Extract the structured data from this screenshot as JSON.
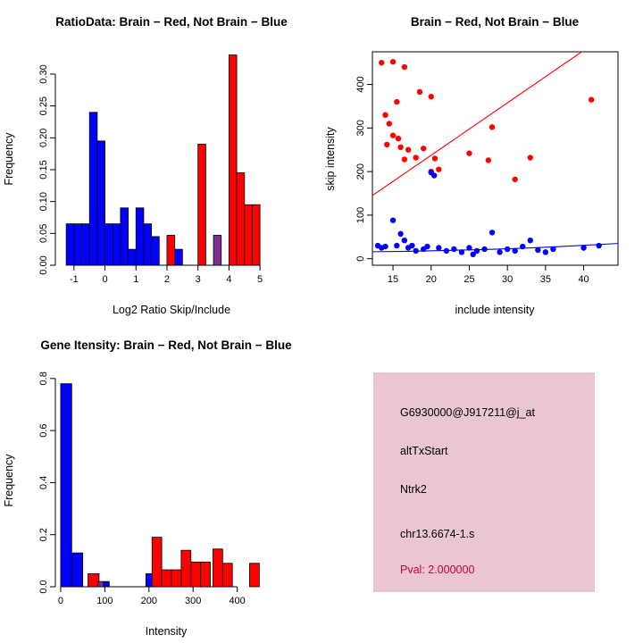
{
  "colors": {
    "red": "#ff0000",
    "blue": "#0000ff",
    "purple": "#7d2f8f",
    "axis": "#000000",
    "pval": "#cc0033",
    "info_bg": "#e9c6d2"
  },
  "chart_data": [
    {
      "id": "ratio_hist",
      "type": "bar",
      "title": "RatioData: Brain − Red, Not Brain − Blue",
      "xlabel": "Log2 Ratio Skip/Include",
      "ylabel": "Frequency",
      "xlim": [
        -1.6,
        5.4
      ],
      "ylim": [
        0,
        0.335
      ],
      "xticks": [
        -1,
        0,
        1,
        2,
        3,
        4,
        5
      ],
      "xtick_labels": [
        "-1",
        "0",
        "1",
        "2",
        "3",
        "4",
        "5"
      ],
      "yticks": [
        0,
        0.05,
        0.1,
        0.15,
        0.2,
        0.25,
        0.3
      ],
      "ytick_labels": [
        "0.00",
        "0.05",
        "0.10",
        "0.15",
        "0.20",
        "0.25",
        "0.30"
      ],
      "legend_note": "Brain = red, Not Brain = blue, overlap = purple",
      "bars": [
        {
          "x": -1.25,
          "w": 0.25,
          "h": 0.065,
          "c": "blue"
        },
        {
          "x": -1.0,
          "w": 0.25,
          "h": 0.065,
          "c": "blue"
        },
        {
          "x": -0.75,
          "w": 0.25,
          "h": 0.065,
          "c": "blue"
        },
        {
          "x": -0.5,
          "w": 0.25,
          "h": 0.24,
          "c": "blue"
        },
        {
          "x": -0.25,
          "w": 0.25,
          "h": 0.195,
          "c": "blue"
        },
        {
          "x": 0.0,
          "w": 0.25,
          "h": 0.065,
          "c": "blue"
        },
        {
          "x": 0.25,
          "w": 0.25,
          "h": 0.065,
          "c": "blue"
        },
        {
          "x": 0.5,
          "w": 0.25,
          "h": 0.09,
          "c": "blue"
        },
        {
          "x": 0.75,
          "w": 0.25,
          "h": 0.025,
          "c": "blue"
        },
        {
          "x": 1.0,
          "w": 0.25,
          "h": 0.09,
          "c": "blue"
        },
        {
          "x": 1.25,
          "w": 0.25,
          "h": 0.065,
          "c": "blue"
        },
        {
          "x": 1.5,
          "w": 0.25,
          "h": 0.045,
          "c": "blue"
        },
        {
          "x": 2.25,
          "w": 0.25,
          "h": 0.025,
          "c": "blue"
        },
        {
          "x": 2.0,
          "w": 0.25,
          "h": 0.047,
          "c": "red"
        },
        {
          "x": 3.0,
          "w": 0.25,
          "h": 0.19,
          "c": "red"
        },
        {
          "x": 4.0,
          "w": 0.25,
          "h": 0.33,
          "c": "red"
        },
        {
          "x": 4.25,
          "w": 0.25,
          "h": 0.145,
          "c": "red"
        },
        {
          "x": 4.5,
          "w": 0.25,
          "h": 0.095,
          "c": "red"
        },
        {
          "x": 4.75,
          "w": 0.25,
          "h": 0.095,
          "c": "red"
        },
        {
          "x": 3.5,
          "w": 0.25,
          "h": 0.047,
          "c": "purple"
        }
      ]
    },
    {
      "id": "intensity_scatter",
      "type": "scatter",
      "title": "Brain − Red, Not Brain − Blue",
      "xlabel": "include intensity",
      "ylabel": "skip intensity",
      "xlim": [
        12.3,
        44.5
      ],
      "ylim": [
        -15,
        475
      ],
      "xticks": [
        15,
        20,
        25,
        30,
        35,
        40
      ],
      "xtick_labels": [
        "15",
        "20",
        "25",
        "30",
        "35",
        "40"
      ],
      "yticks": [
        0,
        100,
        200,
        300,
        400
      ],
      "ytick_labels": [
        "0",
        "100",
        "200",
        "300",
        "400"
      ],
      "series": [
        {
          "name": "Brain",
          "color": "red",
          "points": [
            [
              13.5,
              450
            ],
            [
              15,
              452
            ],
            [
              16.5,
              440
            ],
            [
              15.5,
              360
            ],
            [
              14,
              330
            ],
            [
              14.5,
              310
            ],
            [
              15,
              283
            ],
            [
              15.7,
              276
            ],
            [
              14.2,
              262
            ],
            [
              16,
              256
            ],
            [
              17,
              250
            ],
            [
              18.5,
              383
            ],
            [
              20,
              372
            ],
            [
              19,
              253
            ],
            [
              16.5,
              228
            ],
            [
              18,
              232
            ],
            [
              20.5,
              230
            ],
            [
              21,
              205
            ],
            [
              20,
              200
            ],
            [
              25,
              242
            ],
            [
              28,
              302
            ],
            [
              27.5,
              226
            ],
            [
              31,
              182
            ],
            [
              33,
              232
            ],
            [
              41,
              365
            ]
          ]
        },
        {
          "name": "Not Brain",
          "color": "blue",
          "points": [
            [
              13,
              30
            ],
            [
              13.5,
              25
            ],
            [
              14,
              28
            ],
            [
              15,
              88
            ],
            [
              15.5,
              30
            ],
            [
              16,
              57
            ],
            [
              16.5,
              42
            ],
            [
              17,
              25
            ],
            [
              17.5,
              30
            ],
            [
              18,
              18
            ],
            [
              19,
              22
            ],
            [
              19.5,
              28
            ],
            [
              20,
              198
            ],
            [
              20.4,
              191
            ],
            [
              21,
              25
            ],
            [
              22,
              18
            ],
            [
              23,
              22
            ],
            [
              24,
              15
            ],
            [
              25,
              25
            ],
            [
              25.5,
              10
            ],
            [
              26,
              18
            ],
            [
              27,
              22
            ],
            [
              28,
              60
            ],
            [
              29,
              15
            ],
            [
              30,
              22
            ],
            [
              31,
              18
            ],
            [
              32,
              28
            ],
            [
              33,
              42
            ],
            [
              34,
              20
            ],
            [
              35,
              15
            ],
            [
              36,
              22
            ],
            [
              40,
              25
            ],
            [
              42,
              30
            ]
          ]
        }
      ],
      "lines": [
        {
          "name": "brain-fit-line",
          "color": "red",
          "points": [
            [
              12.3,
              145
            ],
            [
              40,
              478
            ]
          ]
        },
        {
          "name": "notbrain-fit-line",
          "color": "blue",
          "points": [
            [
              12.3,
              16
            ],
            [
              17,
              17
            ],
            [
              22,
              19
            ],
            [
              27,
              21
            ],
            [
              32,
              24
            ],
            [
              37,
              28
            ],
            [
              44.5,
              35
            ]
          ]
        }
      ]
    },
    {
      "id": "gene_hist",
      "type": "bar",
      "title": "Gene Itensity: Brain − Red, Not Brain − Blue",
      "xlabel": "Intensity",
      "ylabel": "Frequency",
      "xlim": [
        -12,
        510
      ],
      "ylim": [
        0,
        0.82
      ],
      "xticks": [
        0,
        100,
        200,
        300,
        400
      ],
      "xtick_labels": [
        "0",
        "100",
        "200",
        "300",
        "400"
      ],
      "yticks": [
        0,
        0.2,
        0.4,
        0.6,
        0.8
      ],
      "ytick_labels": [
        "0.0",
        "0.2",
        "0.4",
        "0.6",
        "0.8"
      ],
      "legend_note": "Brain = red, Not Brain = blue, overlap = purple",
      "bars": [
        {
          "x": 0,
          "w": 25,
          "h": 0.78,
          "c": "blue"
        },
        {
          "x": 25,
          "w": 25,
          "h": 0.13,
          "c": "blue"
        },
        {
          "x": 95,
          "w": 15,
          "h": 0.02,
          "c": "blue"
        },
        {
          "x": 193,
          "w": 14,
          "h": 0.05,
          "c": "blue"
        },
        {
          "x": 62,
          "w": 25,
          "h": 0.05,
          "c": "red"
        },
        {
          "x": 85,
          "w": 12,
          "h": 0.02,
          "c": "purple"
        },
        {
          "x": 207,
          "w": 22,
          "h": 0.19,
          "c": "red"
        },
        {
          "x": 229,
          "w": 22,
          "h": 0.065,
          "c": "red"
        },
        {
          "x": 251,
          "w": 22,
          "h": 0.065,
          "c": "red"
        },
        {
          "x": 273,
          "w": 22,
          "h": 0.14,
          "c": "red"
        },
        {
          "x": 295,
          "w": 22,
          "h": 0.095,
          "c": "red"
        },
        {
          "x": 317,
          "w": 22,
          "h": 0.095,
          "c": "red"
        },
        {
          "x": 345,
          "w": 22,
          "h": 0.145,
          "c": "red"
        },
        {
          "x": 367,
          "w": 22,
          "h": 0.09,
          "c": "red"
        },
        {
          "x": 428,
          "w": 22,
          "h": 0.09,
          "c": "red"
        }
      ]
    }
  ],
  "info_panel": {
    "probe_id": "G6930000@J917211@j_at",
    "event_type": "altTxStart",
    "gene": "Ntrk2",
    "location": "chr13.6674-1.s",
    "pval": "Pval: 2.000000"
  }
}
